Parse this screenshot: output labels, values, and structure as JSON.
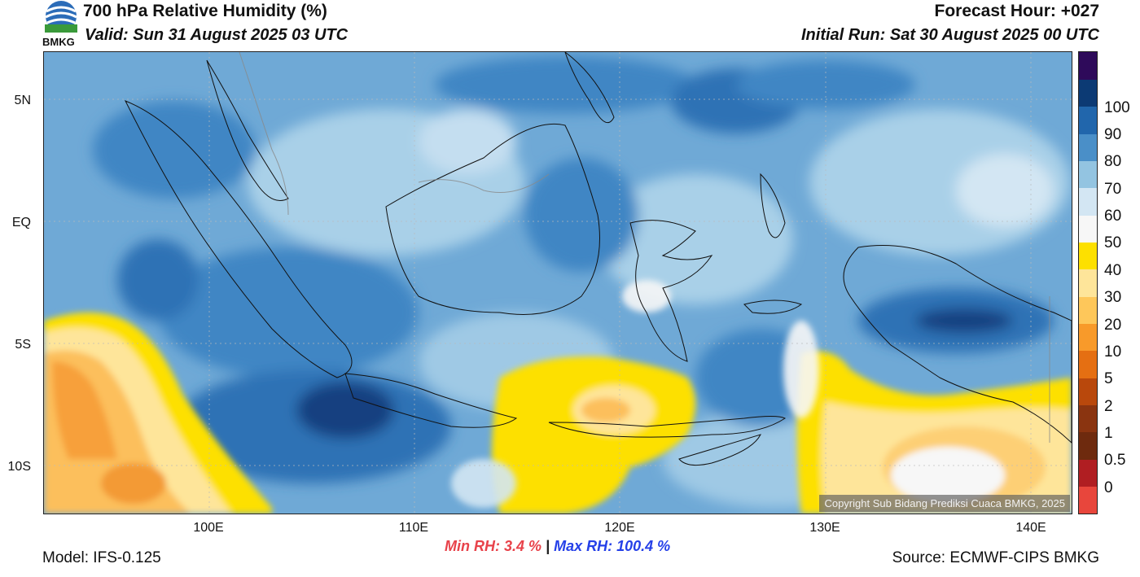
{
  "header": {
    "title": "700 hPa Relative Humidity (%)",
    "valid": "Valid: Sun 31 August 2025 03 UTC",
    "forecast_hour": "Forecast Hour: +027",
    "initial_run": "Initial Run: Sat 30 August 2025 00 UTC",
    "logo_text": "BMKG"
  },
  "axes": {
    "lat_labels": [
      "5N",
      "EQ",
      "5S",
      "10S"
    ],
    "lon_labels": [
      "100E",
      "110E",
      "120E",
      "130E",
      "140E"
    ],
    "lat_values": [
      5,
      0,
      -5,
      -10
    ],
    "lon_values": [
      100,
      110,
      120,
      130,
      140
    ],
    "lat_range": [
      -12,
      7
    ],
    "lon_range": [
      92,
      142
    ]
  },
  "colorbar": {
    "levels": [
      "0",
      "0.5",
      "1",
      "2",
      "5",
      "10",
      "20",
      "30",
      "40",
      "50",
      "60",
      "70",
      "80",
      "90",
      "100"
    ],
    "colors": [
      "#e8463c",
      "#b01e22",
      "#6e2a0e",
      "#8a3410",
      "#b9480c",
      "#e56f12",
      "#f89a2a",
      "#fec75a",
      "#fee59a",
      "#fde000",
      "#f7f7f7",
      "#d3e6f3",
      "#93c4e1",
      "#4a8fc8",
      "#2166ac",
      "#0c3a74",
      "#2e0a5a"
    ]
  },
  "stats": {
    "min_label": "Min RH:",
    "min_value": "3.4 %",
    "separator": "|",
    "max_label": "Max RH:",
    "max_value": "100.4 %"
  },
  "footer": {
    "model": "Model: IFS-0.125",
    "source": "Source: ECMWF-CIPS BMKG",
    "copyright": "Copyright Sub Bidang Prediksi Cuaca BMKG, 2025"
  }
}
